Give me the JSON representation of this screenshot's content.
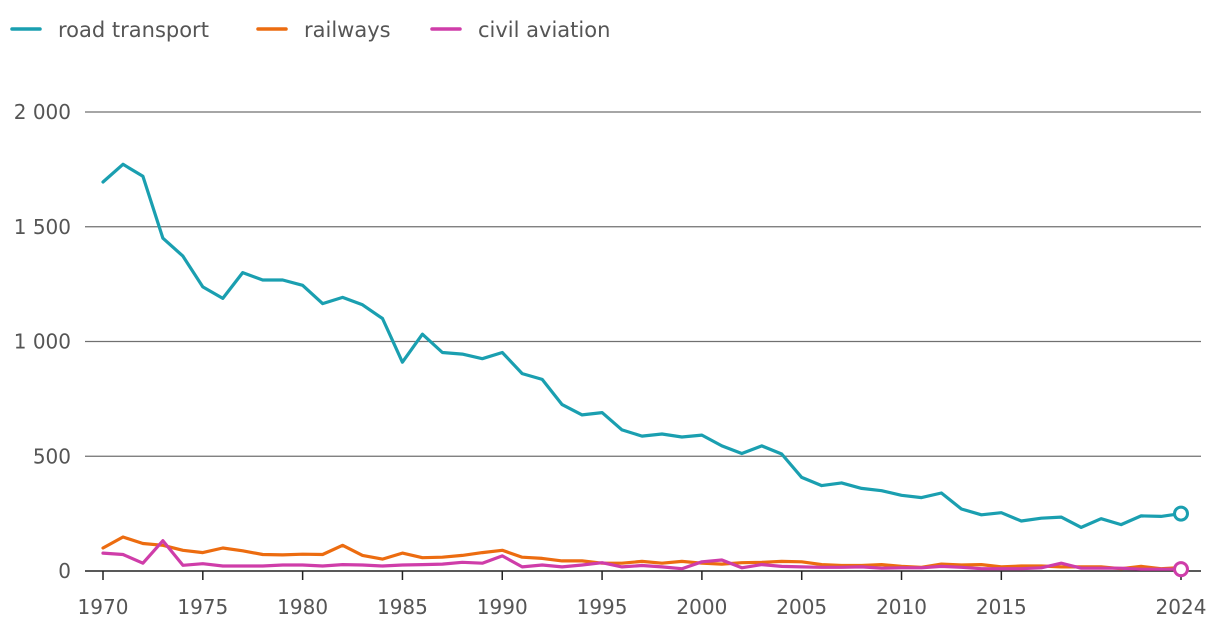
{
  "chart_data": {
    "type": "line",
    "title": "",
    "xlabel": "",
    "ylabel": "",
    "xlim": [
      1970,
      2024
    ],
    "ylim": [
      0,
      2000
    ],
    "grid": true,
    "legend_position": "top-left",
    "x_ticks": [
      {
        "value": 1970,
        "label": "1970"
      },
      {
        "value": 1975,
        "label": "1975"
      },
      {
        "value": 1980,
        "label": "1980"
      },
      {
        "value": 1985,
        "label": "1985"
      },
      {
        "value": 1990,
        "label": "1990"
      },
      {
        "value": 1995,
        "label": "1995"
      },
      {
        "value": 2000,
        "label": "2000"
      },
      {
        "value": 2005,
        "label": "2005"
      },
      {
        "value": 2010,
        "label": "2010"
      },
      {
        "value": 2015,
        "label": "2015"
      },
      {
        "value": 2024,
        "label": "2024"
      }
    ],
    "y_ticks": [
      {
        "value": 0,
        "label": "0"
      },
      {
        "value": 500,
        "label": "500"
      },
      {
        "value": 1000,
        "label": "1 000"
      },
      {
        "value": 1500,
        "label": "1 500"
      },
      {
        "value": 2000,
        "label": "2 000"
      }
    ],
    "x": [
      1970,
      1971,
      1972,
      1973,
      1974,
      1975,
      1976,
      1977,
      1978,
      1979,
      1980,
      1981,
      1982,
      1983,
      1984,
      1985,
      1986,
      1987,
      1988,
      1989,
      1990,
      1991,
      1992,
      1993,
      1994,
      1995,
      1996,
      1997,
      1998,
      1999,
      2000,
      2001,
      2002,
      2003,
      2004,
      2005,
      2006,
      2007,
      2008,
      2009,
      2010,
      2011,
      2012,
      2013,
      2014,
      2015,
      2016,
      2017,
      2018,
      2019,
      2020,
      2021,
      2022,
      2023,
      2024
    ],
    "series": [
      {
        "name": "road transport",
        "color": "#1a9fb0",
        "values": [
          1695,
          1772,
          1720,
          1450,
          1372,
          1238,
          1188,
          1300,
          1268,
          1268,
          1245,
          1165,
          1192,
          1160,
          1100,
          910,
          1032,
          952,
          945,
          925,
          952,
          860,
          835,
          725,
          680,
          690,
          615,
          588,
          597,
          584,
          592,
          545,
          512,
          545,
          510,
          408,
          372,
          384,
          360,
          350,
          330,
          320,
          340,
          270,
          245,
          254,
          218,
          230,
          235,
          190,
          228,
          202,
          240,
          238,
          250
        ],
        "end_marker": true
      },
      {
        "name": "railways",
        "color": "#ec6c10",
        "values": [
          100,
          148,
          120,
          112,
          90,
          80,
          100,
          88,
          72,
          70,
          73,
          72,
          112,
          68,
          52,
          78,
          58,
          60,
          68,
          80,
          90,
          60,
          55,
          44,
          44,
          34,
          34,
          42,
          34,
          42,
          34,
          30,
          36,
          38,
          42,
          40,
          28,
          24,
          24,
          28,
          20,
          16,
          30,
          26,
          28,
          18,
          22,
          22,
          18,
          18,
          18,
          10,
          20,
          10,
          15
        ],
        "end_marker": false
      },
      {
        "name": "civil aviation",
        "color": "#cf3da9",
        "values": [
          78,
          72,
          34,
          132,
          25,
          32,
          22,
          22,
          22,
          26,
          26,
          22,
          28,
          26,
          22,
          26,
          28,
          30,
          38,
          34,
          66,
          18,
          26,
          18,
          26,
          36,
          18,
          24,
          18,
          10,
          40,
          48,
          14,
          28,
          20,
          18,
          16,
          16,
          18,
          12,
          14,
          14,
          20,
          16,
          10,
          10,
          10,
          14,
          34,
          12,
          12,
          12,
          8,
          8,
          8
        ],
        "end_marker": true
      }
    ]
  }
}
